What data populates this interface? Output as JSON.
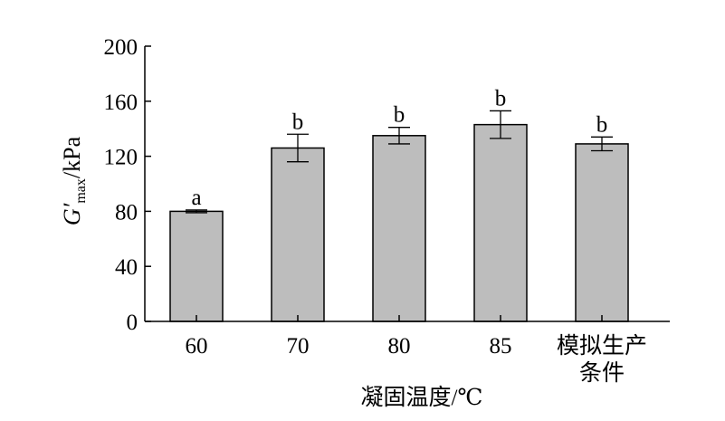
{
  "chart_data": {
    "type": "bar",
    "categories": [
      "60",
      "70",
      "80",
      "85",
      "模拟生产条件"
    ],
    "category_lines": [
      [
        "60"
      ],
      [
        "70"
      ],
      [
        "80"
      ],
      [
        "85"
      ],
      [
        "模拟生产",
        "条件"
      ]
    ],
    "values": [
      80,
      126,
      135,
      143,
      129
    ],
    "errors": [
      1,
      10,
      6,
      10,
      5
    ],
    "significance": [
      "a",
      "b",
      "b",
      "b",
      "b"
    ],
    "xlabel": "凝固温度/℃",
    "ylabel": {
      "main": "G′",
      "sub": "max",
      "unit": "/kPa"
    },
    "ylim": [
      0,
      200
    ],
    "yticks": [
      0,
      40,
      80,
      120,
      160,
      200
    ],
    "grid": false,
    "bar_color": "#bdbdbd",
    "edge_color": "#000000"
  }
}
